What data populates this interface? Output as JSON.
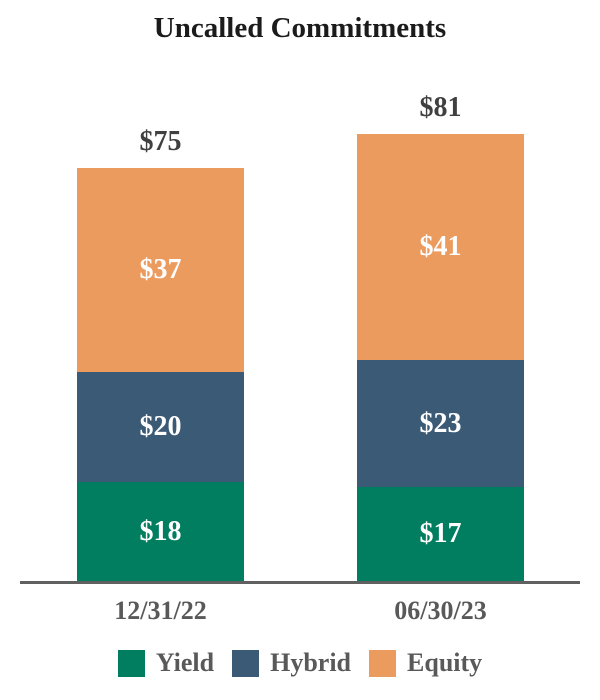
{
  "chart_data": {
    "type": "bar",
    "stacked": true,
    "title": "Uncalled Commitments",
    "categories": [
      "12/31/22",
      "06/30/23"
    ],
    "series": [
      {
        "name": "Yield",
        "color": "#007E5F",
        "values": [
          18,
          17
        ],
        "labels": [
          "$18",
          "$17"
        ]
      },
      {
        "name": "Hybrid",
        "color": "#3B5A76",
        "values": [
          20,
          23
        ],
        "labels": [
          "$20",
          "$23"
        ]
      },
      {
        "name": "Equity",
        "color": "#EC9B5F",
        "values": [
          37,
          41
        ],
        "labels": [
          "$37",
          "$41"
        ]
      }
    ],
    "totals": [
      75,
      81
    ],
    "totals_display": [
      "$75",
      "$81"
    ],
    "ylim": [
      0,
      85
    ],
    "grid": false,
    "legend_position": "bottom",
    "colors": {
      "title_text": "#1B1B1B",
      "total_label_text": "#404040",
      "segment_label_text": "#FFFFFF",
      "axis_label_text": "#595959",
      "axis_line": "#606060",
      "background": "#FFFFFF"
    }
  }
}
